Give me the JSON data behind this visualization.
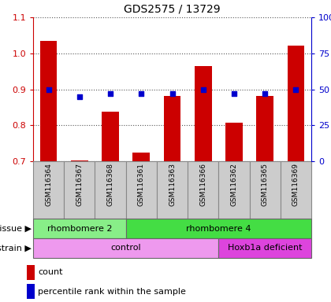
{
  "title": "GDS2575 / 13729",
  "samples": [
    "GSM116364",
    "GSM116367",
    "GSM116368",
    "GSM116361",
    "GSM116363",
    "GSM116366",
    "GSM116362",
    "GSM116365",
    "GSM116369"
  ],
  "count_values": [
    1.035,
    0.702,
    0.838,
    0.725,
    0.882,
    0.965,
    0.808,
    0.882,
    1.022
  ],
  "percentile_values": [
    50,
    45,
    47,
    47,
    47,
    50,
    47,
    47,
    50
  ],
  "ylim": [
    0.7,
    1.1
  ],
  "yticks": [
    0.7,
    0.8,
    0.9,
    1.0,
    1.1
  ],
  "right_yticks": [
    0,
    25,
    50,
    75,
    100
  ],
  "right_ylabels": [
    "0",
    "25",
    "50",
    "75",
    "100%"
  ],
  "bar_color": "#cc0000",
  "dot_color": "#0000cc",
  "tissue_groups": [
    {
      "label": "rhombomere 2",
      "start": 0,
      "end": 3,
      "color": "#88ee88"
    },
    {
      "label": "rhombomere 4",
      "start": 3,
      "end": 9,
      "color": "#44dd44"
    }
  ],
  "strain_groups": [
    {
      "label": "control",
      "start": 0,
      "end": 6,
      "color": "#ee99ee"
    },
    {
      "label": "Hoxb1a deficient",
      "start": 6,
      "end": 9,
      "color": "#dd44dd"
    }
  ],
  "legend_count_label": "count",
  "legend_pct_label": "percentile rank within the sample",
  "left_axis_color": "#cc0000",
  "right_axis_color": "#0000cc",
  "sample_bg_color": "#cccccc",
  "sample_edge_color": "#888888"
}
